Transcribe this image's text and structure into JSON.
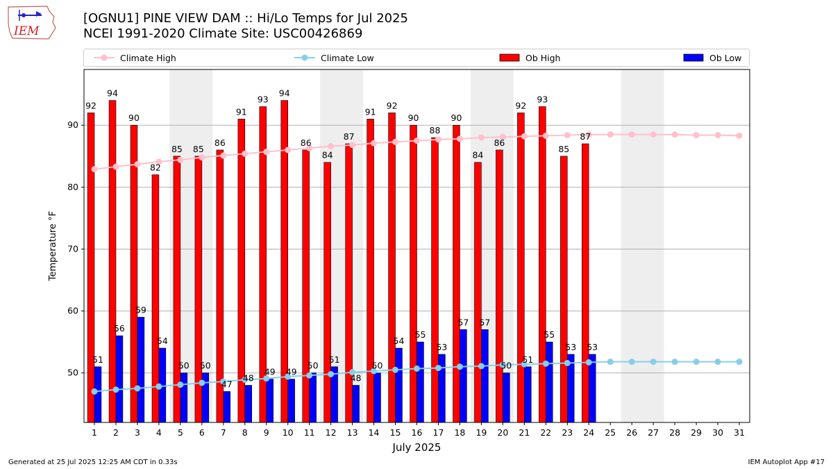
{
  "header": {
    "title_line1": "[OGNU1] PINE VIEW DAM :: Hi/Lo Temps for Jul 2025",
    "title_line2": "NCEI 1991-2020 Climate Site: USC00426869",
    "logo_text": "IEM"
  },
  "legend": {
    "climate_high": "Climate High",
    "climate_low": "Climate Low",
    "ob_high": "Ob High",
    "ob_low": "Ob Low"
  },
  "colors": {
    "ob_high": "#ff0000",
    "ob_low": "#0000ff",
    "climate_high": "#ffc0cb",
    "climate_low": "#87ceeb",
    "weekend_band": "#eeeeee",
    "gridline": "#b0b0b0"
  },
  "footer": {
    "generated": "Generated at 25 Jul 2025 12:25 AM CDT in 0.33s",
    "app": "IEM Autoplot App #17"
  },
  "chart_data": {
    "type": "bar",
    "xlabel": "July 2025",
    "ylabel": "Temperature °F",
    "ylim": [
      42,
      99
    ],
    "yticks": [
      50,
      60,
      70,
      80,
      90
    ],
    "grid": "horizontal",
    "legend_position": "top",
    "categories": [
      1,
      2,
      3,
      4,
      5,
      6,
      7,
      8,
      9,
      10,
      11,
      12,
      13,
      14,
      15,
      16,
      17,
      18,
      19,
      20,
      21,
      22,
      23,
      24,
      25,
      26,
      27,
      28,
      29,
      30,
      31
    ],
    "shaded_days": [
      5,
      6,
      12,
      13,
      19,
      20,
      26,
      27
    ],
    "series": [
      {
        "name": "Ob High",
        "kind": "bar",
        "values": [
          92,
          94,
          90,
          82,
          85,
          85,
          86,
          91,
          93,
          94,
          86,
          84,
          87,
          91,
          92,
          90,
          88,
          90,
          84,
          86,
          92,
          93,
          85,
          87,
          null,
          null,
          null,
          null,
          null,
          null,
          null
        ]
      },
      {
        "name": "Ob Low",
        "kind": "bar",
        "values": [
          51,
          56,
          59,
          54,
          50,
          50,
          47,
          48,
          49,
          49,
          50,
          51,
          48,
          50,
          54,
          55,
          53,
          57,
          57,
          50,
          51,
          55,
          53,
          53,
          null,
          null,
          null,
          null,
          null,
          null,
          null
        ]
      },
      {
        "name": "Climate High",
        "kind": "line",
        "values": [
          82.9,
          83.3,
          83.7,
          84.1,
          84.4,
          84.8,
          85.1,
          85.4,
          85.7,
          86.0,
          86.3,
          86.6,
          86.8,
          87.1,
          87.3,
          87.5,
          87.7,
          87.8,
          88.0,
          88.1,
          88.2,
          88.3,
          88.4,
          88.5,
          88.5,
          88.5,
          88.5,
          88.5,
          88.4,
          88.4,
          88.3
        ]
      },
      {
        "name": "Climate Low",
        "kind": "line",
        "values": [
          47.0,
          47.3,
          47.5,
          47.8,
          48.1,
          48.4,
          48.6,
          48.9,
          49.1,
          49.4,
          49.6,
          49.8,
          50.1,
          50.3,
          50.5,
          50.7,
          50.8,
          51.0,
          51.1,
          51.3,
          51.4,
          51.5,
          51.6,
          51.7,
          51.8,
          51.8,
          51.8,
          51.8,
          51.8,
          51.8,
          51.8
        ]
      }
    ]
  }
}
